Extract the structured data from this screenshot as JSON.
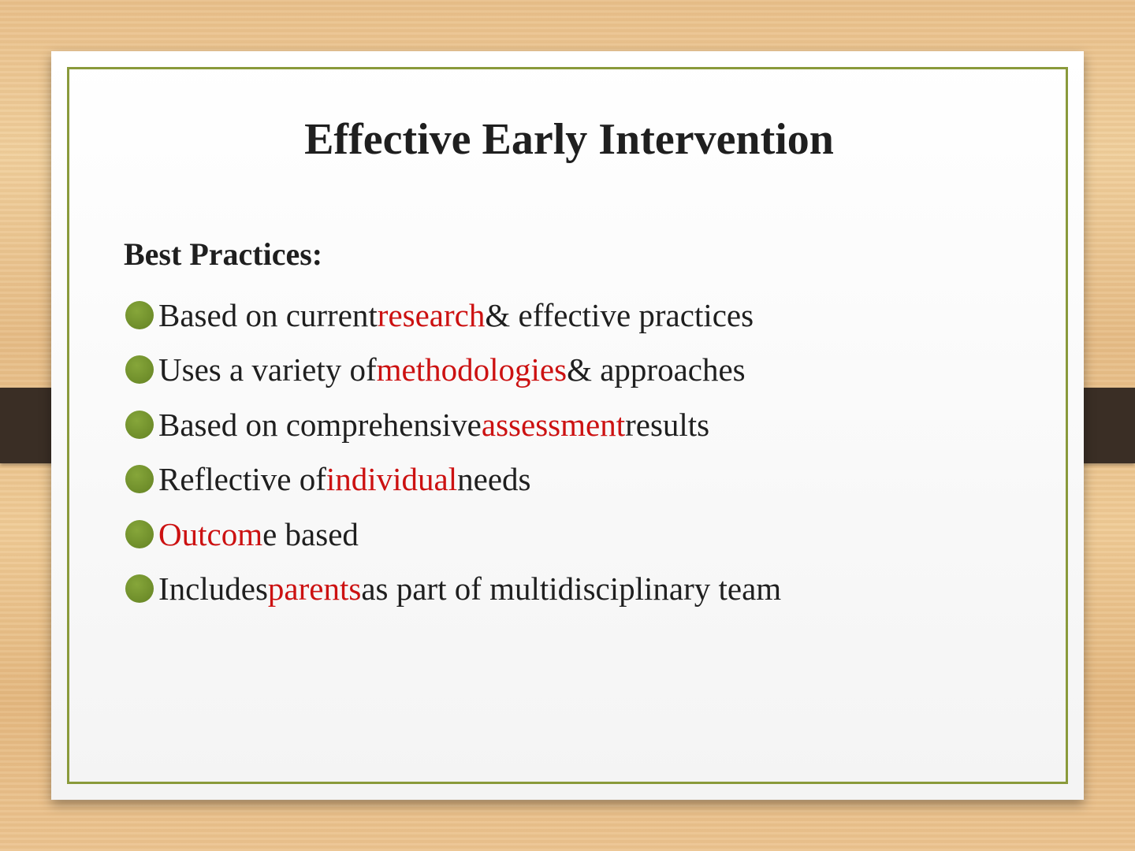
{
  "slide": {
    "title": "Effective Early Intervention",
    "subheading": "Best Practices:",
    "bullets": [
      {
        "before": "Based on current ",
        "highlight": "research",
        "after": " & effective practices"
      },
      {
        "before": "Uses a variety of ",
        "highlight": "methodologies",
        "after": " & approaches"
      },
      {
        "before": "Based on comprehensive ",
        "highlight": "assessment",
        "after": " results"
      },
      {
        "before": "Reflective of ",
        "highlight": "individual",
        "after": " needs"
      },
      {
        "before": "",
        "highlight": "Outcom",
        "after": "e based"
      },
      {
        "before": "Includes ",
        "highlight": "parents",
        "after": " as part of multidisciplinary team"
      }
    ]
  },
  "colors": {
    "highlight": "#cc1111",
    "bullet": "#6e8d2a",
    "frame": "#8a9a3b",
    "strap": "#3a2e25"
  },
  "icons": {
    "bullet": "green-circle-bullet-icon"
  }
}
